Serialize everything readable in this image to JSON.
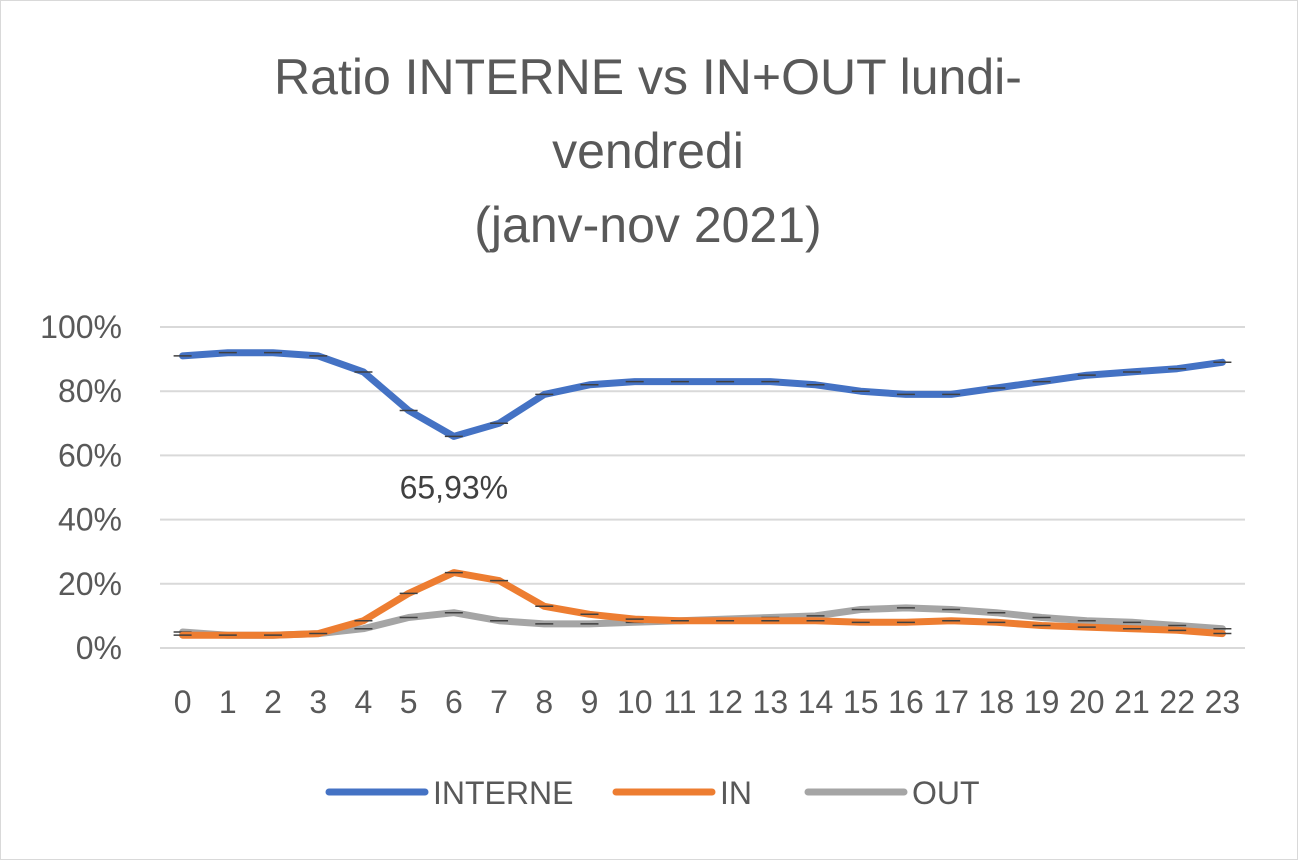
{
  "chart_data": {
    "type": "line",
    "title_lines": [
      "Ratio INTERNE vs IN+OUT lundi-",
      "vendredi",
      "(janv-nov 2021)"
    ],
    "xlabel": "",
    "ylabel": "",
    "ylim": [
      0,
      1
    ],
    "y_ticks": [
      {
        "value": 0,
        "label": "0%"
      },
      {
        "value": 0.2,
        "label": "20%"
      },
      {
        "value": 0.4,
        "label": "40%"
      },
      {
        "value": 0.6,
        "label": "60%"
      },
      {
        "value": 0.8,
        "label": "80%"
      },
      {
        "value": 1.0,
        "label": "100%"
      }
    ],
    "grid": true,
    "legend_position": "bottom",
    "categories": [
      "0",
      "1",
      "2",
      "3",
      "4",
      "5",
      "6",
      "7",
      "8",
      "9",
      "10",
      "11",
      "12",
      "13",
      "14",
      "15",
      "16",
      "17",
      "18",
      "19",
      "20",
      "21",
      "22",
      "23"
    ],
    "series": [
      {
        "name": "INTERNE",
        "color": "#4472c4",
        "values": [
          0.91,
          0.92,
          0.92,
          0.91,
          0.86,
          0.74,
          0.6593,
          0.7,
          0.79,
          0.82,
          0.83,
          0.83,
          0.83,
          0.83,
          0.82,
          0.8,
          0.79,
          0.79,
          0.81,
          0.83,
          0.85,
          0.86,
          0.87,
          0.89
        ]
      },
      {
        "name": "IN",
        "color": "#ed7d31",
        "values": [
          0.04,
          0.04,
          0.04,
          0.045,
          0.085,
          0.17,
          0.235,
          0.21,
          0.13,
          0.105,
          0.09,
          0.085,
          0.085,
          0.085,
          0.085,
          0.08,
          0.08,
          0.085,
          0.08,
          0.07,
          0.065,
          0.06,
          0.055,
          0.045
        ]
      },
      {
        "name": "OUT",
        "color": "#a5a5a5",
        "values": [
          0.05,
          0.04,
          0.04,
          0.045,
          0.06,
          0.095,
          0.11,
          0.085,
          0.075,
          0.075,
          0.08,
          0.085,
          0.09,
          0.095,
          0.1,
          0.12,
          0.125,
          0.12,
          0.11,
          0.095,
          0.085,
          0.08,
          0.07,
          0.06
        ]
      }
    ],
    "annotations": [
      {
        "series": "INTERNE",
        "category": "6",
        "label": "65,93%"
      }
    ]
  }
}
